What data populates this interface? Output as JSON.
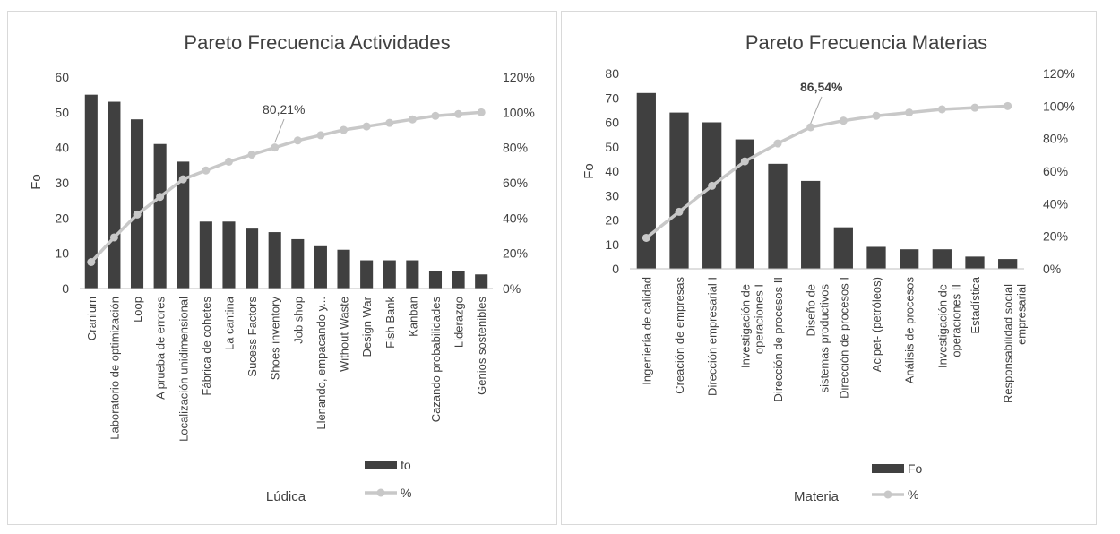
{
  "chart_data": [
    {
      "type": "bar",
      "title": "Pareto Frecuencia Actividades",
      "xlabel": "Lúdica",
      "ylabel": "Fo",
      "ylim": [
        0,
        60
      ],
      "y_ticks": [
        "0",
        "10",
        "20",
        "30",
        "40",
        "50",
        "60"
      ],
      "y2lim": [
        0,
        1.2
      ],
      "y2_ticks": [
        "0%",
        "20%",
        "40%",
        "60%",
        "80%",
        "100%",
        "120%"
      ],
      "categories": [
        "Cranium",
        "Laboratorio de optimización",
        "Loop",
        "A prueba de errores",
        "Localización unidimensional",
        "Fábrica de cohetes",
        "La cantina",
        "Sucess Factors",
        "Shoes inventory",
        "Job shop",
        "Llenando, empacando y...",
        "Without Waste",
        "Design War",
        "Fish Bank",
        "Kanban",
        "Cazando probabilidades",
        "Liderazgo",
        "Genios sostenibles"
      ],
      "series": [
        {
          "name": "fo",
          "kind": "bar",
          "color": "#404040",
          "values": [
            55,
            53,
            48,
            41,
            36,
            19,
            19,
            17,
            16,
            14,
            12,
            11,
            8,
            8,
            8,
            5,
            5,
            4
          ]
        },
        {
          "name": "%",
          "kind": "line",
          "axis": "secondary",
          "color": "#c8c8c8",
          "values": [
            0.15,
            0.29,
            0.42,
            0.52,
            0.62,
            0.67,
            0.72,
            0.76,
            0.8,
            0.84,
            0.87,
            0.9,
            0.92,
            0.94,
            0.96,
            0.98,
            0.99,
            1.0
          ]
        }
      ],
      "annotation": {
        "text": "80,21%",
        "index": 8,
        "value": 0.8021
      },
      "legend_placement": "bottom-right",
      "grid": false
    },
    {
      "type": "bar",
      "title": "Pareto Frecuencia Materias",
      "xlabel": "Materia",
      "ylabel": "Fo",
      "ylim": [
        0,
        80
      ],
      "y_ticks": [
        "0",
        "10",
        "20",
        "30",
        "40",
        "50",
        "60",
        "70",
        "80"
      ],
      "y2lim": [
        0,
        1.2
      ],
      "y2_ticks": [
        "0%",
        "20%",
        "40%",
        "60%",
        "80%",
        "100%",
        "120%"
      ],
      "categories": [
        "Ingeniería de calidad",
        "Creación de empresas",
        "Dirección empresarial I",
        "Investigación de operaciones I",
        "Dirección de procesos II",
        "Diseño de sistemas productivos",
        "Dirección de procesos I",
        "Acipet- (petróleos)",
        "Análisis de procesos",
        "Investigación de operaciones II",
        "Estadística",
        "Responsabilidad social empresarial"
      ],
      "series": [
        {
          "name": "Fo",
          "kind": "bar",
          "color": "#404040",
          "values": [
            72,
            64,
            60,
            53,
            43,
            36,
            17,
            9,
            8,
            8,
            5,
            4
          ]
        },
        {
          "name": "%",
          "kind": "line",
          "axis": "secondary",
          "color": "#c8c8c8",
          "values": [
            0.19,
            0.35,
            0.51,
            0.66,
            0.77,
            0.87,
            0.91,
            0.94,
            0.96,
            0.98,
            0.99,
            1.0
          ]
        }
      ],
      "annotation": {
        "text": "86,54%",
        "index": 5,
        "value": 0.8654
      },
      "legend_placement": "bottom-right",
      "grid": false
    }
  ]
}
